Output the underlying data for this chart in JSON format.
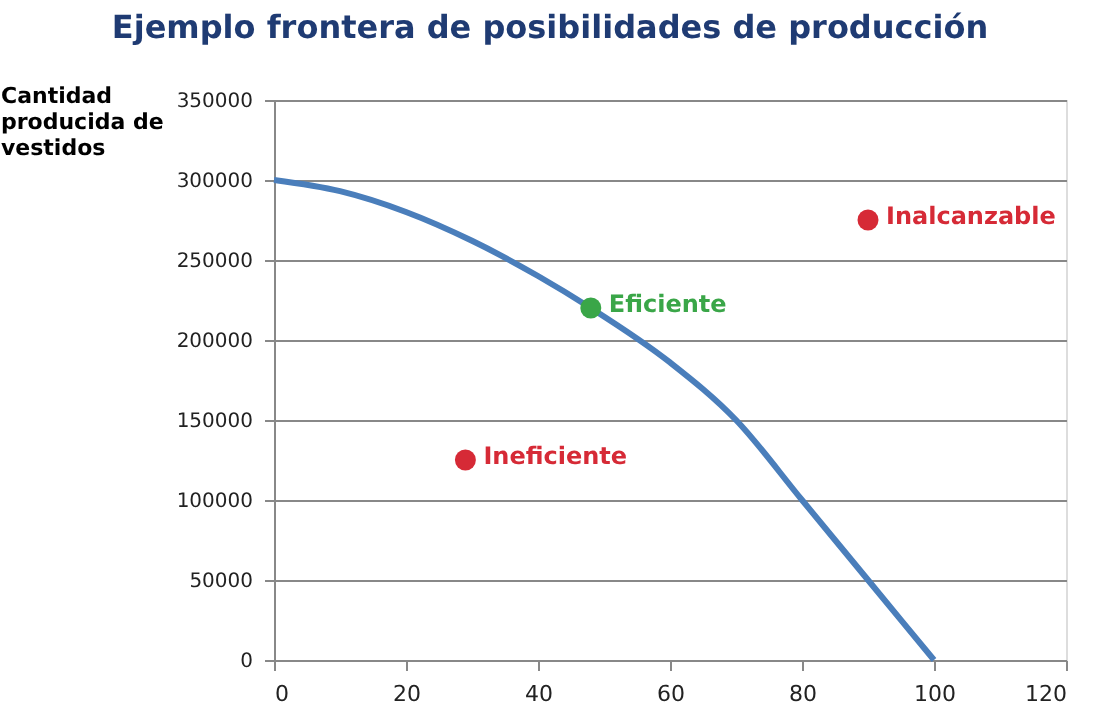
{
  "chart_data": {
    "type": "line",
    "title": "Ejemplo frontera de posibilidades de producción",
    "ylabel": "Cantidad producida de vestidos",
    "xlim": [
      0,
      120
    ],
    "xticks": [
      0,
      20,
      40,
      60,
      80,
      100,
      120
    ],
    "ylim": [
      0,
      350000
    ],
    "yticks": [
      0,
      50000,
      100000,
      150000,
      200000,
      250000,
      300000,
      350000
    ],
    "grid": "y",
    "line_style": "solid",
    "series": [
      {
        "color": "#4a7ebb",
        "x": [
          0,
          10,
          20,
          30,
          40,
          48,
          60,
          70,
          80,
          90,
          100
        ],
        "values": [
          300000,
          293000,
          280000,
          262000,
          240000,
          220000,
          186000,
          150000,
          100000,
          50000,
          0
        ]
      },
      {
        "type": "scatter",
        "name": "Eficiente",
        "color": "#3aa648",
        "marker": "circle",
        "x": [
          48
        ],
        "values": [
          220000
        ]
      },
      {
        "type": "scatter",
        "name": "Ineficiente",
        "color": "#d62a36",
        "marker": "circle",
        "x": [
          29
        ],
        "values": [
          125000
        ]
      },
      {
        "type": "scatter",
        "name": "Inalcanzable",
        "color": "#d62a36",
        "marker": "circle",
        "x": [
          90
        ],
        "values": [
          275000
        ]
      }
    ]
  }
}
